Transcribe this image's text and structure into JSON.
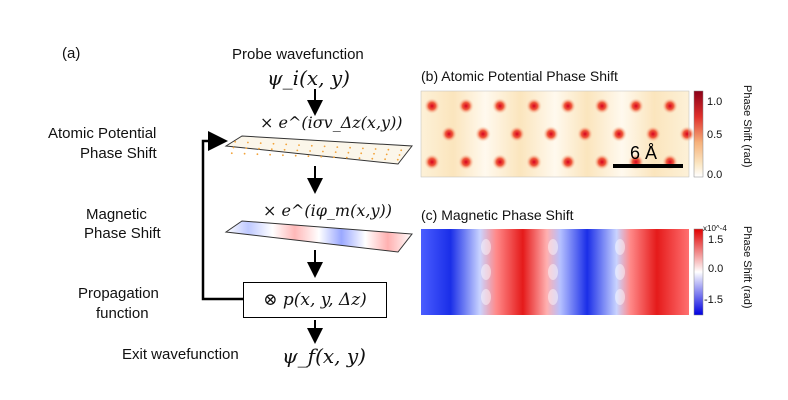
{
  "panel_a": {
    "label": "(a)",
    "probe_label": "Probe wavefunction",
    "psi_i": "ψ_i(x, y)",
    "atomic_label_1": "Atomic Potential",
    "atomic_label_2": "Phase Shift",
    "atomic_operator": "× e^(iσv_Δz(x,y))",
    "magnetic_label_1": "Magnetic",
    "magnetic_label_2": "Phase Shift",
    "magnetic_operator": "× e^(iφ_m(x,y))",
    "propagation_label_1": "Propagation",
    "propagation_label_2": "function",
    "propagation_operator": "⊗ p(x, y, Δz)",
    "exit_label": "Exit wavefunction",
    "psi_f": "ψ_f(x, y)"
  },
  "panel_b": {
    "title": "(b) Atomic Potential Phase Shift",
    "scalebar": "6 Å",
    "colorbar_ticks": [
      "1.0",
      "0.5",
      "0.0"
    ],
    "colorbar_label": "Phase Shift (rad)"
  },
  "panel_c": {
    "title": "(c) Magnetic Phase Shift",
    "colorbar_ticks": [
      "1.5",
      "0.0",
      "-1.5"
    ],
    "colorbar_multiplier": "x10^-4",
    "colorbar_label": "Phase Shift (rad)"
  }
}
